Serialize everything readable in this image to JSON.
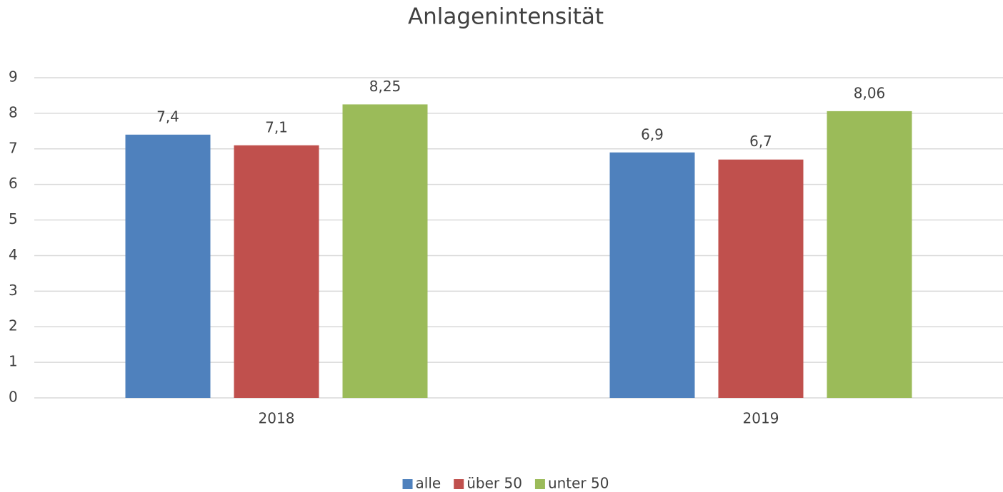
{
  "chart_data": {
    "type": "bar",
    "title": "Anlagenintensität",
    "categories": [
      "2018",
      "2019"
    ],
    "series": [
      {
        "name": "alle",
        "color": "#4f81bd",
        "values": [
          7.4,
          6.9
        ],
        "value_labels": [
          "7,4",
          "6,9"
        ]
      },
      {
        "name": "über 50",
        "color": "#c0504d",
        "values": [
          7.1,
          6.7
        ],
        "value_labels": [
          "7,1",
          "6,7"
        ]
      },
      {
        "name": "unter 50",
        "color": "#9bbb59",
        "values": [
          8.25,
          8.06
        ],
        "value_labels": [
          "8,25",
          "8,06"
        ]
      }
    ],
    "ylim": [
      0,
      9
    ],
    "yticks": [
      0,
      1,
      2,
      3,
      4,
      5,
      6,
      7,
      8,
      9
    ],
    "grid": true,
    "legend": "bottom"
  }
}
